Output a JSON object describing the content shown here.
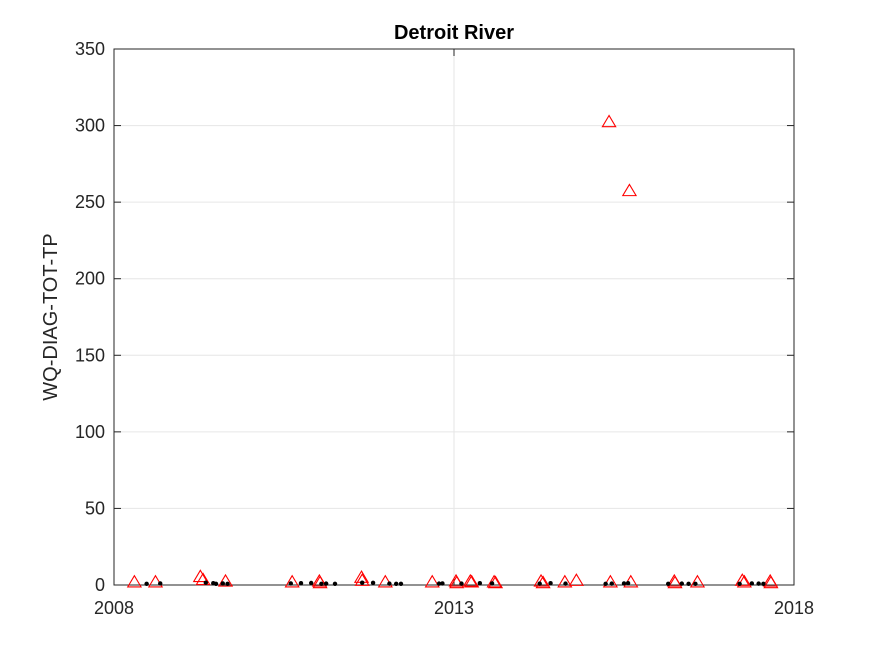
{
  "chart_data": {
    "type": "scatter",
    "title": "Detroit River",
    "xlabel": "",
    "ylabel": "WQ-DIAG-TOT-TP",
    "xlim": [
      2008,
      2018
    ],
    "ylim": [
      0,
      350
    ],
    "xticks": [
      2008,
      2013,
      2018
    ],
    "xtick_labels": [
      "2008",
      "2013",
      "2018"
    ],
    "yticks": [
      0,
      50,
      100,
      150,
      200,
      250,
      300,
      350
    ],
    "ytick_labels": [
      "0",
      "50",
      "100",
      "150",
      "200",
      "250",
      "300",
      "350"
    ],
    "grid": true,
    "legend": "none",
    "series": [
      {
        "marker": "triangle",
        "color": "#ff0000",
        "points": [
          {
            "x": 2008.3,
            "y": 1.5
          },
          {
            "x": 2008.61,
            "y": 1.5
          },
          {
            "x": 2009.27,
            "y": 5.0
          },
          {
            "x": 2009.31,
            "y": 3.0
          },
          {
            "x": 2009.64,
            "y": 2.0
          },
          {
            "x": 2010.62,
            "y": 1.5
          },
          {
            "x": 2011.02,
            "y": 2.0
          },
          {
            "x": 2011.03,
            "y": 1.0
          },
          {
            "x": 2011.64,
            "y": 4.5
          },
          {
            "x": 2011.65,
            "y": 2.5
          },
          {
            "x": 2011.99,
            "y": 1.5
          },
          {
            "x": 2012.68,
            "y": 1.5
          },
          {
            "x": 2013.03,
            "y": 2.0
          },
          {
            "x": 2013.04,
            "y": 1.0
          },
          {
            "x": 2013.24,
            "y": 2.0
          },
          {
            "x": 2013.26,
            "y": 1.5
          },
          {
            "x": 2013.59,
            "y": 1.5
          },
          {
            "x": 2013.61,
            "y": 1.0
          },
          {
            "x": 2014.28,
            "y": 2.0
          },
          {
            "x": 2014.31,
            "y": 1.0
          },
          {
            "x": 2014.63,
            "y": 1.5
          },
          {
            "x": 2014.8,
            "y": 2.5
          },
          {
            "x": 2015.28,
            "y": 302.0
          },
          {
            "x": 2015.3,
            "y": 1.5
          },
          {
            "x": 2015.58,
            "y": 257.0
          },
          {
            "x": 2015.6,
            "y": 1.5
          },
          {
            "x": 2016.24,
            "y": 2.0
          },
          {
            "x": 2016.25,
            "y": 1.0
          },
          {
            "x": 2016.58,
            "y": 1.5
          },
          {
            "x": 2017.24,
            "y": 2.5
          },
          {
            "x": 2017.27,
            "y": 1.5
          },
          {
            "x": 2017.65,
            "y": 2.0
          },
          {
            "x": 2017.66,
            "y": 1.0
          }
        ]
      },
      {
        "marker": "dot",
        "color": "#000000",
        "points": [
          {
            "x": 2008.48,
            "y": 0.8
          },
          {
            "x": 2008.68,
            "y": 1.0
          },
          {
            "x": 2009.35,
            "y": 1.5
          },
          {
            "x": 2009.46,
            "y": 1.2
          },
          {
            "x": 2009.5,
            "y": 0.8
          },
          {
            "x": 2009.6,
            "y": 1.0
          },
          {
            "x": 2009.67,
            "y": 0.8
          },
          {
            "x": 2010.6,
            "y": 1.0
          },
          {
            "x": 2010.75,
            "y": 1.2
          },
          {
            "x": 2010.9,
            "y": 1.3
          },
          {
            "x": 2011.05,
            "y": 0.8
          },
          {
            "x": 2011.12,
            "y": 0.9
          },
          {
            "x": 2011.25,
            "y": 0.8
          },
          {
            "x": 2011.65,
            "y": 1.5
          },
          {
            "x": 2011.81,
            "y": 1.4
          },
          {
            "x": 2012.05,
            "y": 0.9
          },
          {
            "x": 2012.15,
            "y": 0.8
          },
          {
            "x": 2012.22,
            "y": 0.8
          },
          {
            "x": 2012.78,
            "y": 0.9
          },
          {
            "x": 2012.83,
            "y": 1.0
          },
          {
            "x": 2013.11,
            "y": 0.9
          },
          {
            "x": 2013.38,
            "y": 1.2
          },
          {
            "x": 2013.56,
            "y": 1.0
          },
          {
            "x": 2014.26,
            "y": 0.9
          },
          {
            "x": 2014.42,
            "y": 1.2
          },
          {
            "x": 2014.64,
            "y": 0.9
          },
          {
            "x": 2015.23,
            "y": 0.8
          },
          {
            "x": 2015.32,
            "y": 0.9
          },
          {
            "x": 2015.5,
            "y": 1.0
          },
          {
            "x": 2015.56,
            "y": 1.2
          },
          {
            "x": 2016.15,
            "y": 0.8
          },
          {
            "x": 2016.35,
            "y": 0.9
          },
          {
            "x": 2016.45,
            "y": 0.8
          },
          {
            "x": 2016.55,
            "y": 0.8
          },
          {
            "x": 2017.2,
            "y": 0.8
          },
          {
            "x": 2017.38,
            "y": 1.0
          },
          {
            "x": 2017.48,
            "y": 0.9
          },
          {
            "x": 2017.55,
            "y": 0.8
          }
        ]
      }
    ]
  }
}
